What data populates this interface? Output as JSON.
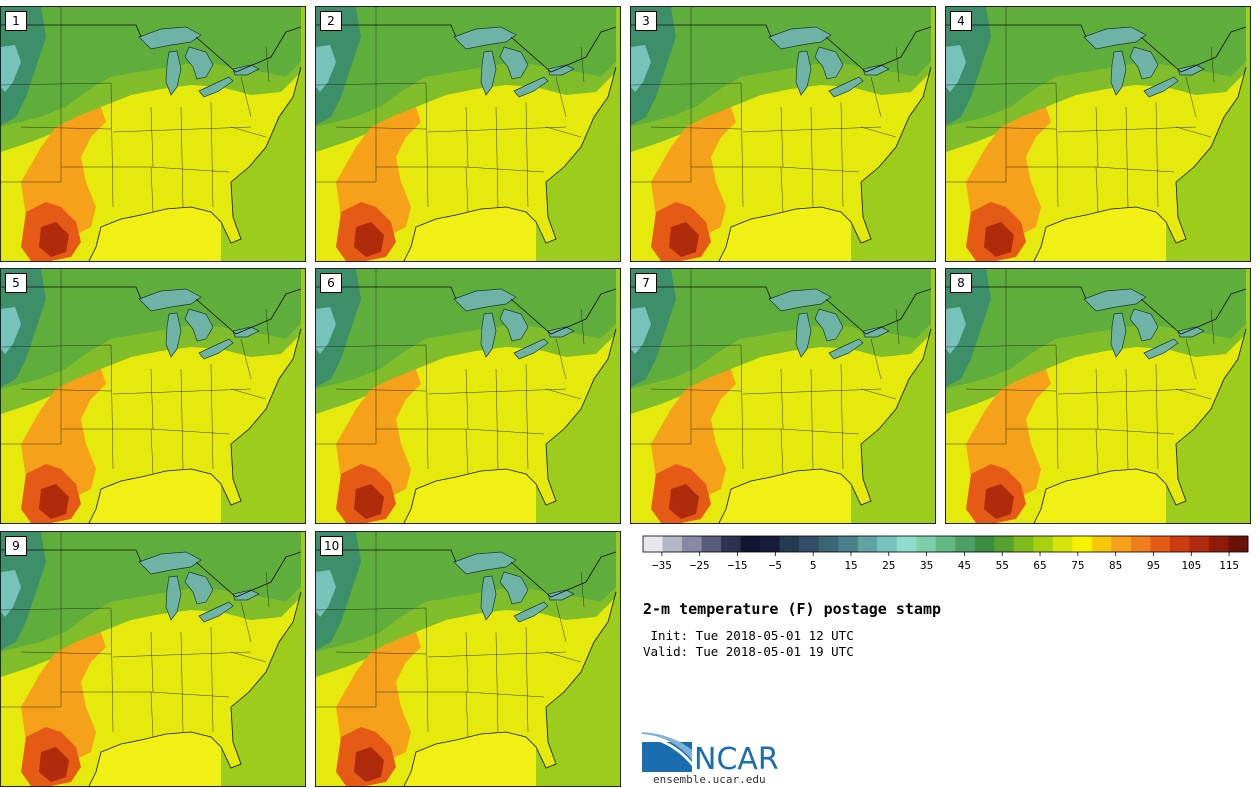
{
  "title": "2-m temperature (F) postage stamp",
  "init": " Init: Tue 2018-05-01 12 UTC",
  "valid": "Valid: Tue 2018-05-01 19 UTC",
  "logo": {
    "text": "NCAR",
    "url": "ensemble.ucar.edu",
    "color": "#1a6eb0"
  },
  "panels": [
    "1",
    "2",
    "3",
    "4",
    "5",
    "6",
    "7",
    "8",
    "9",
    "10"
  ],
  "colorbar": {
    "colors": [
      "#e8e8ec",
      "#b6b7c6",
      "#8789a2",
      "#595d7c",
      "#2e3353",
      "#101533",
      "#151d3b",
      "#243a52",
      "#2f4e66",
      "#3c6578",
      "#4a7f8c",
      "#62a0a4",
      "#78c2bc",
      "#8fdccf",
      "#7ccfa8",
      "#63b884",
      "#4ea064",
      "#3a8c3e",
      "#55a22c",
      "#7dba1a",
      "#a8d00f",
      "#d4e40b",
      "#f7f300",
      "#f7c70e",
      "#f5a11a",
      "#f07e1d",
      "#e55b16",
      "#cc3b10",
      "#b02a0c",
      "#8f1c0a",
      "#6b1208"
    ],
    "tick_labels": [
      "−35",
      "−25",
      "−15",
      "−5",
      "5",
      "15",
      "25",
      "35",
      "45",
      "55",
      "65",
      "75",
      "85",
      "95",
      "105",
      "115"
    ],
    "tick_values": [
      -35,
      -25,
      -15,
      -5,
      5,
      15,
      25,
      35,
      45,
      55,
      65,
      75,
      85,
      95,
      105,
      115
    ],
    "range": [
      -40,
      120
    ]
  }
}
